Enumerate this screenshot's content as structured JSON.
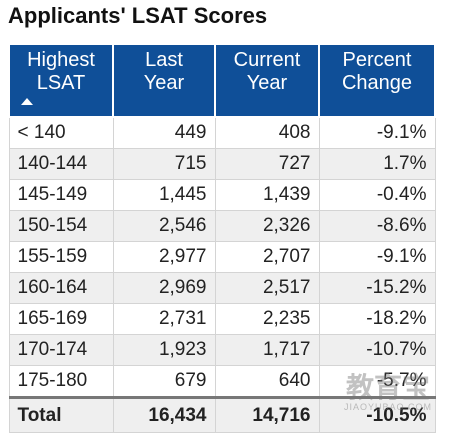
{
  "header": {
    "title": "Applicants' LSAT Scores"
  },
  "table": {
    "columns": [
      [
        "Highest",
        "LSAT"
      ],
      [
        "Last",
        "Year"
      ],
      [
        "Current",
        "Year"
      ],
      [
        "Percent",
        "Change"
      ]
    ],
    "rows": [
      [
        "< 140",
        "449",
        "408",
        "-9.1%"
      ],
      [
        "140-144",
        "715",
        "727",
        "1.7%"
      ],
      [
        "145-149",
        "1,445",
        "1,439",
        "-0.4%"
      ],
      [
        "150-154",
        "2,546",
        "2,326",
        "-8.6%"
      ],
      [
        "155-159",
        "2,977",
        "2,707",
        "-9.1%"
      ],
      [
        "160-164",
        "2,969",
        "2,517",
        "-15.2%"
      ],
      [
        "165-169",
        "2,731",
        "2,235",
        "-18.2%"
      ],
      [
        "170-174",
        "1,923",
        "1,717",
        "-10.7%"
      ],
      [
        "175-180",
        "679",
        "640",
        "-5.7%"
      ]
    ],
    "total": [
      "Total",
      "16,434",
      "14,716",
      "-10.5%"
    ]
  },
  "watermark": {
    "main": "教育宝",
    "sub": "JIAOYUBAO.COM"
  }
}
